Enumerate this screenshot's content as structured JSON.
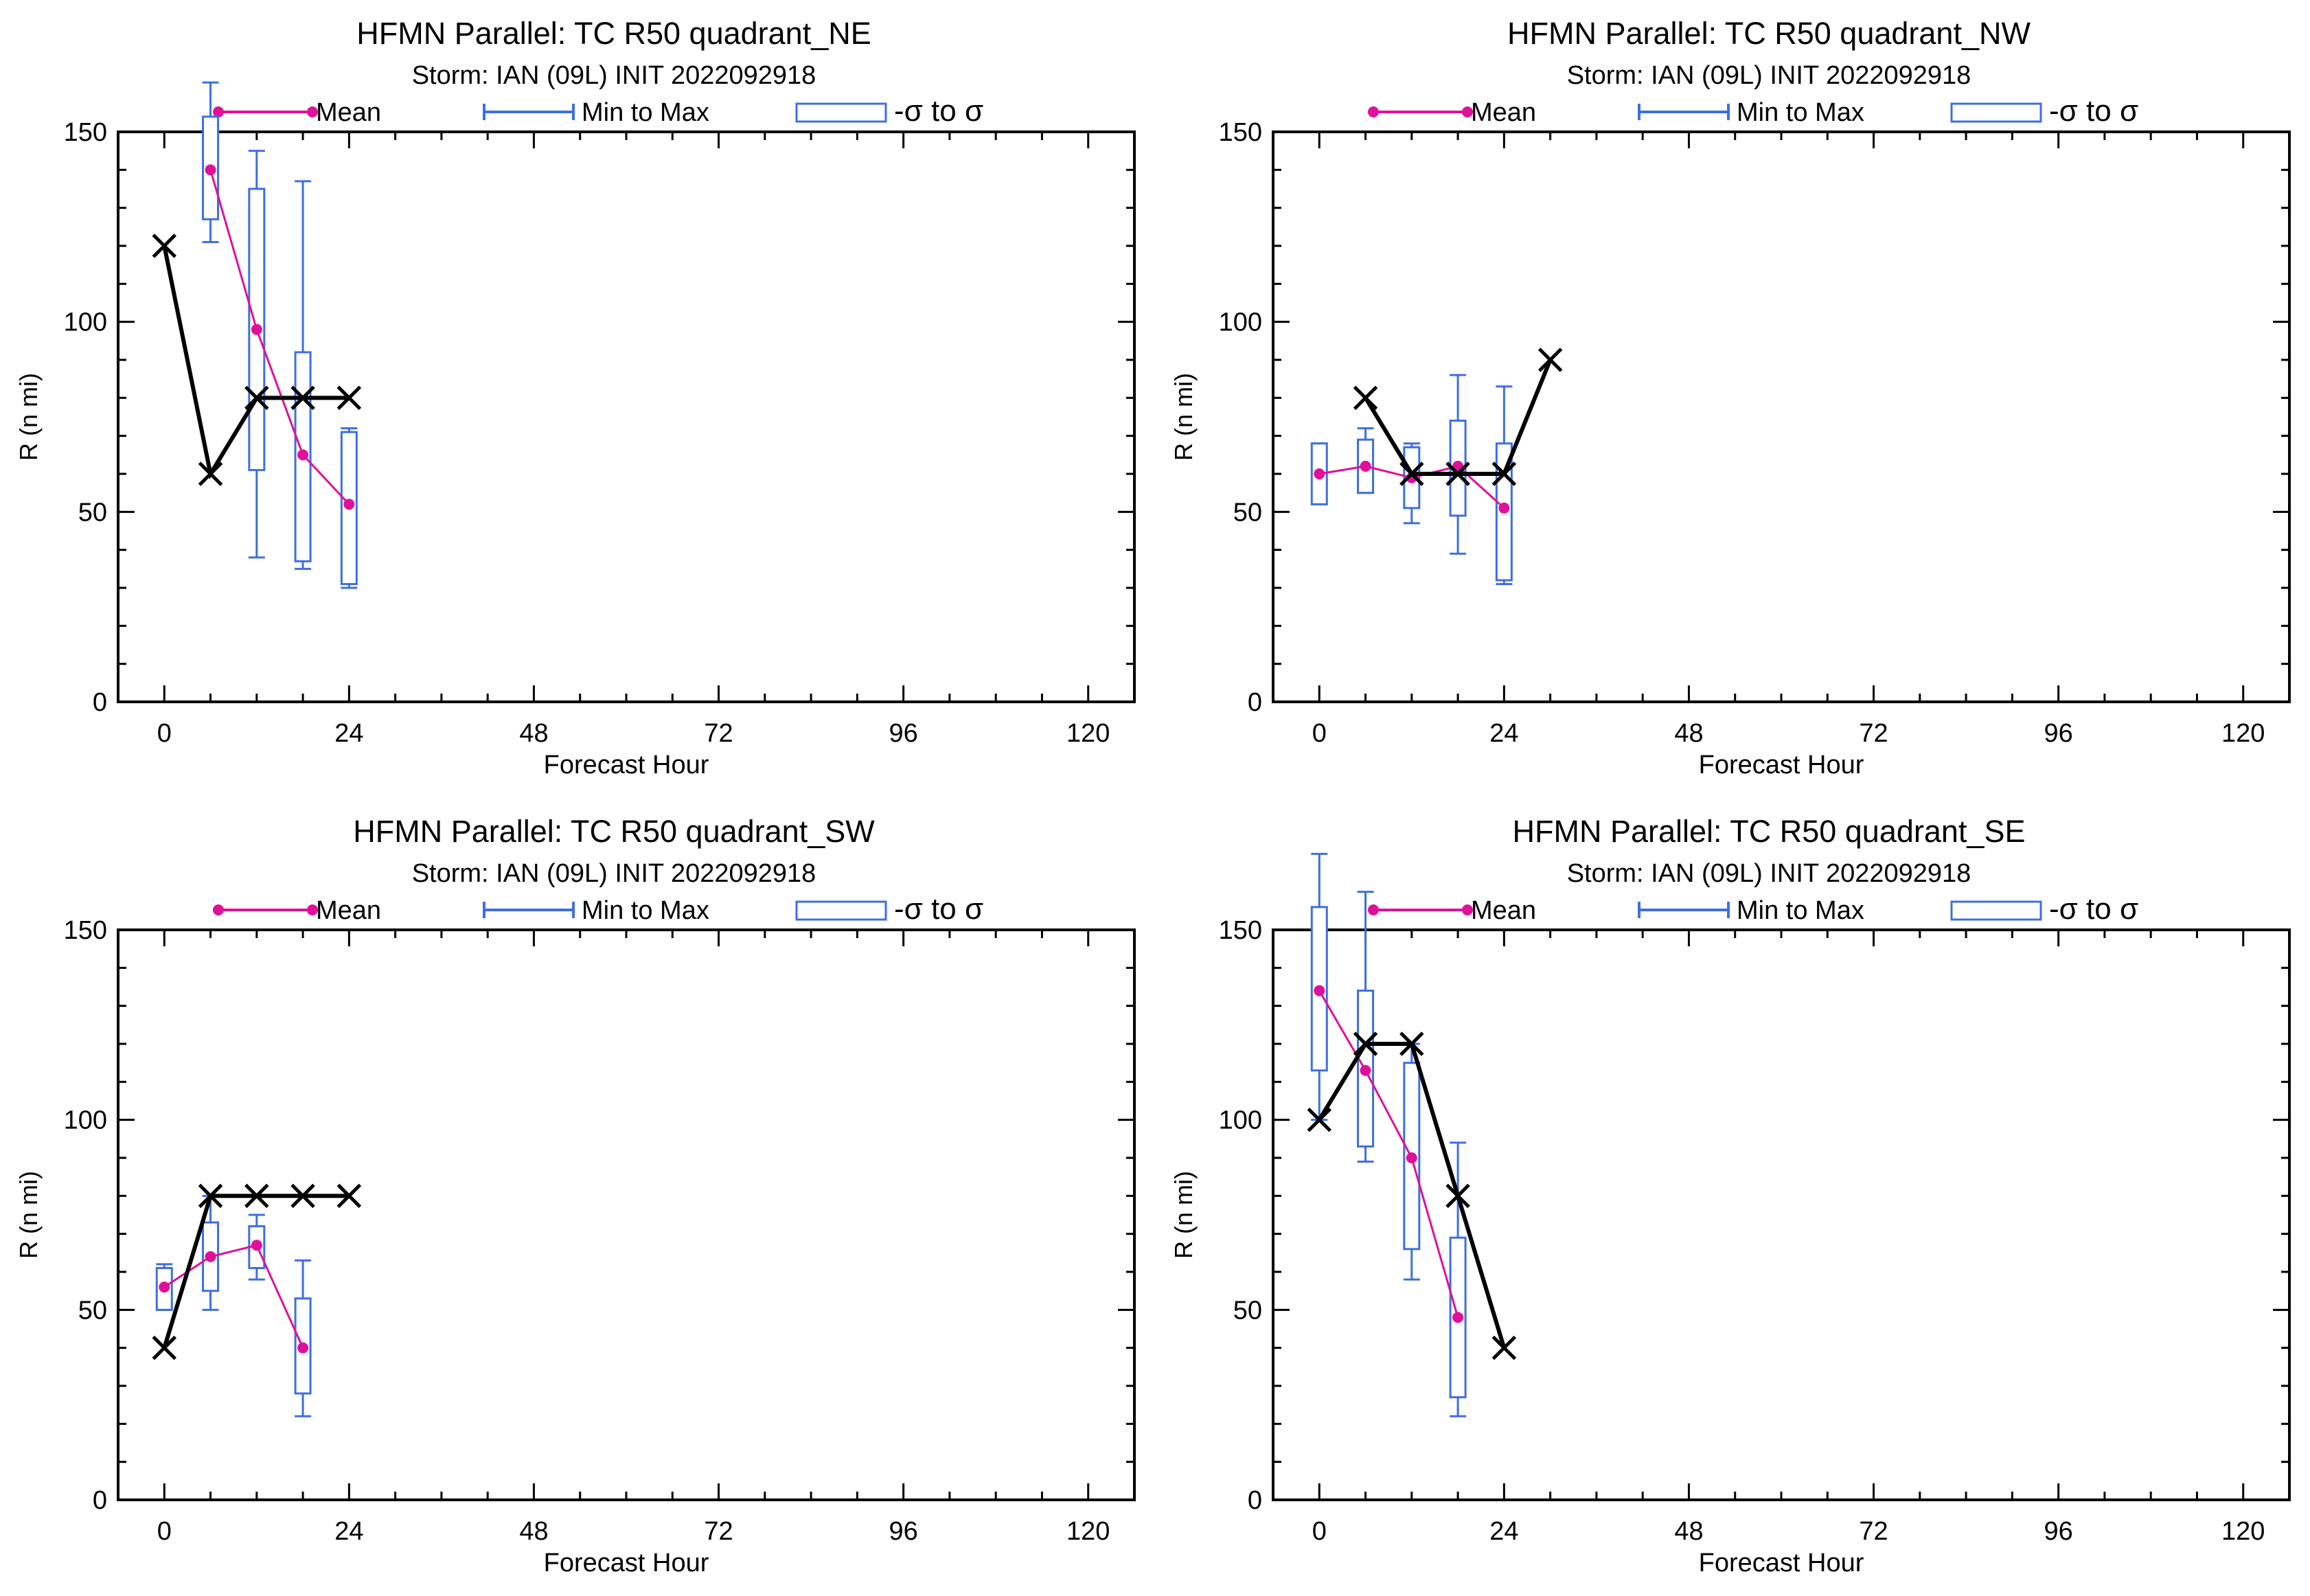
{
  "legend": {
    "mean_label": "Mean",
    "minmax_label": "Min to Max",
    "sigma_label": "-σ to σ"
  },
  "colors": {
    "mean": "#e0109a",
    "box": "#3e6fe0",
    "truth": "#000000",
    "axis": "#000000"
  },
  "chart_data": [
    {
      "type": "box",
      "title": "HFMN Parallel: TC  R50 quadrant_NE",
      "subtitle": "Storm: IAN (09L) INIT 2022092918",
      "xlabel": "Forecast Hour",
      "ylabel": "R (n mi)",
      "xlim": [
        -6,
        126
      ],
      "ylim": [
        0,
        150
      ],
      "xticks": [
        0,
        24,
        48,
        72,
        96,
        120
      ],
      "yticks": [
        0,
        50,
        100,
        150
      ],
      "boxes": [
        {
          "x": 6,
          "min": 121,
          "q1": 127,
          "q3": 154,
          "max": 163
        },
        {
          "x": 12,
          "min": 38,
          "q1": 61,
          "q3": 135,
          "max": 145
        },
        {
          "x": 18,
          "min": 35,
          "q1": 37,
          "q3": 92,
          "max": 137
        },
        {
          "x": 24,
          "min": 30,
          "q1": 31,
          "q3": 71,
          "max": 72
        }
      ],
      "mean": {
        "x": [
          6,
          12,
          18,
          24
        ],
        "y": [
          140,
          98,
          65,
          52
        ]
      },
      "truth": {
        "x": [
          0,
          6,
          12,
          18,
          24
        ],
        "y": [
          120,
          60,
          80,
          80,
          80
        ]
      }
    },
    {
      "type": "box",
      "title": "HFMN Parallel: TC  R50 quadrant_NW",
      "subtitle": "Storm: IAN (09L) INIT 2022092918",
      "xlabel": "Forecast Hour",
      "ylabel": "R (n mi)",
      "xlim": [
        -6,
        126
      ],
      "ylim": [
        0,
        150
      ],
      "xticks": [
        0,
        24,
        48,
        72,
        96,
        120
      ],
      "yticks": [
        0,
        50,
        100,
        150
      ],
      "boxes": [
        {
          "x": 0,
          "min": 52,
          "q1": 52,
          "q3": 68,
          "max": 68
        },
        {
          "x": 6,
          "min": 55,
          "q1": 55,
          "q3": 69,
          "max": 72
        },
        {
          "x": 12,
          "min": 47,
          "q1": 51,
          "q3": 67,
          "max": 68
        },
        {
          "x": 18,
          "min": 39,
          "q1": 49,
          "q3": 74,
          "max": 86
        },
        {
          "x": 24,
          "min": 31,
          "q1": 32,
          "q3": 68,
          "max": 83
        }
      ],
      "mean": {
        "x": [
          0,
          6,
          12,
          18,
          24
        ],
        "y": [
          60,
          62,
          59,
          62,
          51
        ]
      },
      "truth": {
        "x": [
          6,
          12,
          18,
          24,
          30
        ],
        "y": [
          80,
          60,
          60,
          60,
          90
        ]
      }
    },
    {
      "type": "box",
      "title": "HFMN Parallel: TC  R50 quadrant_SW",
      "subtitle": "Storm: IAN (09L) INIT 2022092918",
      "xlabel": "Forecast Hour",
      "ylabel": "R (n mi)",
      "xlim": [
        -6,
        126
      ],
      "ylim": [
        0,
        150
      ],
      "xticks": [
        0,
        24,
        48,
        72,
        96,
        120
      ],
      "yticks": [
        0,
        50,
        100,
        150
      ],
      "boxes": [
        {
          "x": 0,
          "min": 50,
          "q1": 50,
          "q3": 61,
          "max": 62
        },
        {
          "x": 6,
          "min": 50,
          "q1": 55,
          "q3": 73,
          "max": 80
        },
        {
          "x": 12,
          "min": 58,
          "q1": 61,
          "q3": 72,
          "max": 75
        },
        {
          "x": 18,
          "min": 22,
          "q1": 28,
          "q3": 53,
          "max": 63
        }
      ],
      "mean": {
        "x": [
          0,
          6,
          12,
          18
        ],
        "y": [
          56,
          64,
          67,
          40
        ]
      },
      "truth": {
        "x": [
          0,
          6,
          12,
          18,
          24
        ],
        "y": [
          40,
          80,
          80,
          80,
          80
        ]
      }
    },
    {
      "type": "box",
      "title": "HFMN Parallel: TC  R50 quadrant_SE",
      "subtitle": "Storm: IAN (09L) INIT 2022092918",
      "xlabel": "Forecast Hour",
      "ylabel": "R (n mi)",
      "xlim": [
        -6,
        126
      ],
      "ylim": [
        0,
        150
      ],
      "xticks": [
        0,
        24,
        48,
        72,
        96,
        120
      ],
      "yticks": [
        0,
        50,
        100,
        150
      ],
      "boxes": [
        {
          "x": 0,
          "min": 100,
          "q1": 113,
          "q3": 156,
          "max": 170
        },
        {
          "x": 6,
          "min": 89,
          "q1": 93,
          "q3": 134,
          "max": 160
        },
        {
          "x": 12,
          "min": 58,
          "q1": 66,
          "q3": 115,
          "max": 120
        },
        {
          "x": 18,
          "min": 22,
          "q1": 27,
          "q3": 69,
          "max": 94
        }
      ],
      "mean": {
        "x": [
          0,
          6,
          12,
          18
        ],
        "y": [
          134,
          113,
          90,
          48
        ]
      },
      "truth": {
        "x": [
          0,
          6,
          12,
          18,
          24
        ],
        "y": [
          100,
          120,
          120,
          80,
          40
        ]
      }
    }
  ]
}
